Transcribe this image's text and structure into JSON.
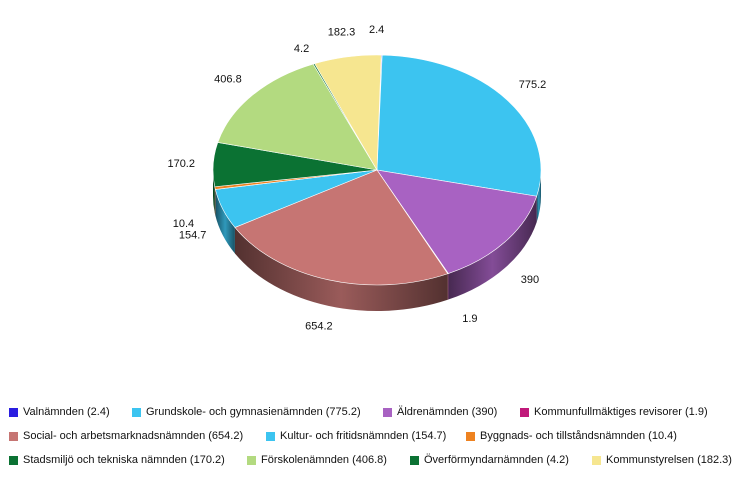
{
  "chart_data": {
    "type": "pie",
    "title": "",
    "style": "3d",
    "slices": [
      {
        "label": "Valnämnden",
        "value": 2.4,
        "data_label": "2.4",
        "legend_label": "Valnämnden (2.4)",
        "color": "#2a1de0"
      },
      {
        "label": "Grundskole- och gymnasienämnden",
        "value": 775.2,
        "data_label": "775.2",
        "legend_label": "Grundskole- och gymnasienämnden (775.2)",
        "color": "#3cc4f0"
      },
      {
        "label": "Äldrenämnden",
        "value": 390,
        "data_label": "390",
        "legend_label": "Äldrenämnden (390)",
        "color": "#a862c2"
      },
      {
        "label": "Kommunfullmäktiges revisorer",
        "value": 1.9,
        "data_label": "1.9",
        "legend_label": "Kommunfullmäktiges revisorer (1.9)",
        "color": "#c0197a"
      },
      {
        "label": "Social- och arbetsmarknadsnämnden",
        "value": 654.2,
        "data_label": "654.2",
        "legend_label": "Social- och arbetsmarknadsnämnden (654.2)",
        "color": "#c67573"
      },
      {
        "label": "Kultur- och fritidsnämnden",
        "value": 154.7,
        "data_label": "154.7",
        "legend_label": "Kultur- och fritidsnämnden (154.7)",
        "color": "#3cc4f0"
      },
      {
        "label": "Byggnads- och tillståndsnämnden",
        "value": 10.4,
        "data_label": "10.4",
        "legend_label": "Byggnads- och tillståndsnämnden (10.4)",
        "color": "#ee8220"
      },
      {
        "label": "Stadsmiljö och tekniska nämnden",
        "value": 170.2,
        "data_label": "170.2",
        "legend_label": "Stadsmiljö och tekniska nämnden (170.2)",
        "color": "#0b7233"
      },
      {
        "label": "Förskolenämnden",
        "value": 406.8,
        "data_label": "406.8",
        "legend_label": "Förskolenämnden (406.8)",
        "color": "#b3da80"
      },
      {
        "label": "Överförmyndarnämnden",
        "value": 4.2,
        "data_label": "4.2",
        "legend_label": "Överförmyndarnämnden (4.2)",
        "color": "#0b7233"
      },
      {
        "label": "Kommunstyrelsen",
        "value": 182.3,
        "data_label": "182.3",
        "legend_label": "Kommunstyrelsen (182.3)",
        "color": "#f6e690"
      }
    ]
  }
}
